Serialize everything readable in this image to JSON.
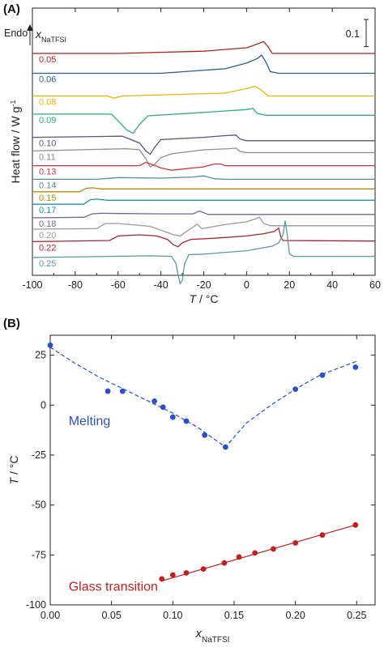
{
  "chart_data": [
    {
      "panel": "(A)",
      "type": "line",
      "xlabel_italic": "T",
      "xlabel_unit": " / °C",
      "ylabel": "Heat flow / W g",
      "ylabel_sup": "-1",
      "xlim": [
        -100,
        60
      ],
      "xticks": [
        -100,
        -80,
        -60,
        -40,
        -20,
        0,
        20,
        40,
        60
      ],
      "endo_label": "Endo",
      "legend_var": "x",
      "legend_sub": "NaTFSI",
      "scale_bar_label": "0.1",
      "scale_bar_value": 0.1,
      "series": [
        {
          "name": "0.05",
          "color": "#b22222",
          "baseline": 0.0,
          "points": [
            [
              -100,
              0.0
            ],
            [
              -60,
              0.0
            ],
            [
              -20,
              0.004
            ],
            [
              0,
              0.01
            ],
            [
              3,
              0.014
            ],
            [
              6,
              0.018
            ],
            [
              8,
              0.021
            ],
            [
              10,
              0.012
            ],
            [
              12,
              0.0
            ],
            [
              60,
              0.0
            ]
          ]
        },
        {
          "name": "0.06",
          "color": "#2e5c8a",
          "baseline": -0.035,
          "points": [
            [
              -100,
              0.0
            ],
            [
              -40,
              0.0
            ],
            [
              -10,
              0.008
            ],
            [
              0,
              0.018
            ],
            [
              5,
              0.026
            ],
            [
              7,
              0.032
            ],
            [
              9,
              0.02
            ],
            [
              11,
              0.003
            ],
            [
              15,
              0.0
            ],
            [
              60,
              0.0
            ]
          ]
        },
        {
          "name": "0.08",
          "color": "#e6b800",
          "baseline": -0.075,
          "points": [
            [
              -100,
              0.0
            ],
            [
              -65,
              0.0
            ],
            [
              -62,
              -0.004
            ],
            [
              -58,
              0.0
            ],
            [
              -10,
              0.005
            ],
            [
              0,
              0.013
            ],
            [
              4,
              0.017
            ],
            [
              7,
              0.01
            ],
            [
              10,
              0.0
            ],
            [
              60,
              0.0
            ]
          ]
        },
        {
          "name": "0.09",
          "color": "#2aae82",
          "baseline": -0.107,
          "points": [
            [
              -100,
              0.0
            ],
            [
              -63,
              0.0
            ],
            [
              -60,
              -0.012
            ],
            [
              -56,
              -0.028
            ],
            [
              -53,
              -0.034
            ],
            [
              -50,
              -0.018
            ],
            [
              -46,
              -0.003
            ],
            [
              -20,
              0.003
            ],
            [
              0,
              0.008
            ],
            [
              3,
              0.01
            ],
            [
              5,
              0.001
            ],
            [
              9,
              -0.002
            ],
            [
              60,
              -0.002
            ]
          ]
        },
        {
          "name": "0.10",
          "color": "#555577",
          "baseline": -0.148,
          "points": [
            [
              -100,
              0.0
            ],
            [
              -58,
              0.002
            ],
            [
              -50,
              -0.01
            ],
            [
              -47,
              -0.024
            ],
            [
              -45,
              -0.03
            ],
            [
              -43,
              -0.018
            ],
            [
              -40,
              -0.004
            ],
            [
              -20,
              0.0
            ],
            [
              -10,
              0.003
            ],
            [
              -5,
              0.004
            ],
            [
              -3,
              -0.003
            ],
            [
              0,
              -0.006
            ],
            [
              60,
              -0.006
            ]
          ]
        },
        {
          "name": "0.11",
          "color": "#8c8c8c",
          "baseline": -0.172,
          "points": [
            [
              -100,
              0.0
            ],
            [
              -56,
              0.004
            ],
            [
              -50,
              0.002
            ],
            [
              -47,
              -0.014
            ],
            [
              -45,
              -0.028
            ],
            [
              -43,
              -0.024
            ],
            [
              -40,
              -0.012
            ],
            [
              -35,
              -0.005
            ],
            [
              -20,
              0.002
            ],
            [
              -8,
              0.004
            ],
            [
              -5,
              0.005
            ],
            [
              -3,
              -0.001
            ],
            [
              0,
              -0.003
            ],
            [
              60,
              -0.003
            ]
          ]
        },
        {
          "name": "0.13",
          "color": "#cc3344",
          "baseline": -0.198,
          "points": [
            [
              -100,
              0.0
            ],
            [
              -50,
              0.0
            ],
            [
              -47,
              0.006
            ],
            [
              -44,
              0.002
            ],
            [
              -40,
              -0.004
            ],
            [
              -35,
              -0.008
            ],
            [
              -30,
              -0.006
            ],
            [
              -20,
              -0.002
            ],
            [
              -15,
              0.003
            ],
            [
              -12,
              0.003
            ],
            [
              -10,
              0.0
            ],
            [
              60,
              0.0
            ]
          ]
        },
        {
          "name": "0.14",
          "color": "#5b8aaa",
          "baseline": -0.222,
          "points": [
            [
              -100,
              0.0
            ],
            [
              -70,
              0.0
            ],
            [
              -60,
              0.003
            ],
            [
              -40,
              0.002
            ],
            [
              -25,
              0.004
            ],
            [
              -20,
              0.006
            ],
            [
              -15,
              0.001
            ],
            [
              -10,
              0.0
            ],
            [
              60,
              0.0
            ]
          ]
        },
        {
          "name": "0.15",
          "color": "#b8860b",
          "baseline": -0.244,
          "points": [
            [
              -100,
              0.0
            ],
            [
              -78,
              0.0
            ],
            [
              -75,
              0.006
            ],
            [
              -72,
              0.007
            ],
            [
              -68,
              0.005
            ],
            [
              60,
              0.005
            ]
          ]
        },
        {
          "name": "0.17",
          "color": "#1a9999",
          "baseline": -0.266,
          "points": [
            [
              -100,
              0.0
            ],
            [
              -76,
              0.0
            ],
            [
              -73,
              0.008
            ],
            [
              -70,
              0.009
            ],
            [
              -65,
              0.007
            ],
            [
              60,
              0.007
            ]
          ]
        },
        {
          "name": "0.18",
          "color": "#6a6a90",
          "baseline": -0.29,
          "points": [
            [
              -100,
              0.0
            ],
            [
              -76,
              0.001
            ],
            [
              -72,
              0.007
            ],
            [
              -68,
              0.008
            ],
            [
              -40,
              0.007
            ],
            [
              -25,
              0.007
            ],
            [
              -22,
              0.012
            ],
            [
              -18,
              0.006
            ],
            [
              60,
              0.006
            ]
          ]
        },
        {
          "name": "0.20",
          "color": "#9a9a9a",
          "baseline": -0.31,
          "points": [
            [
              -100,
              0.0
            ],
            [
              -70,
              0.001
            ],
            [
              -66,
              0.01
            ],
            [
              -60,
              0.01
            ],
            [
              -45,
              0.005
            ],
            [
              -34,
              -0.01
            ],
            [
              -31,
              -0.012
            ],
            [
              -28,
              -0.004
            ],
            [
              -24,
              0.006
            ],
            [
              -23,
              0.009
            ],
            [
              -21,
              0.001
            ],
            [
              -10,
              0.008
            ],
            [
              0,
              0.013
            ],
            [
              4,
              0.018
            ],
            [
              6,
              0.021
            ],
            [
              8,
              0.01
            ],
            [
              11,
              0.006
            ],
            [
              60,
              0.006
            ]
          ]
        },
        {
          "name": "0.22",
          "color": "#aa2233",
          "baseline": -0.332,
          "points": [
            [
              -100,
              0.0
            ],
            [
              -64,
              0.002
            ],
            [
              -60,
              0.01
            ],
            [
              -50,
              0.012
            ],
            [
              -42,
              0.01
            ],
            [
              -37,
              0.004
            ],
            [
              -34,
              -0.006
            ],
            [
              -32,
              -0.009
            ],
            [
              -30,
              -0.002
            ],
            [
              -26,
              0.004
            ],
            [
              -15,
              0.006
            ],
            [
              0,
              0.01
            ],
            [
              8,
              0.014
            ],
            [
              13,
              0.018
            ],
            [
              15,
              0.024
            ],
            [
              16,
              0.008
            ],
            [
              17,
              0.002
            ],
            [
              60,
              0.001
            ]
          ]
        },
        {
          "name": "0.25",
          "color": "#5a9a9a",
          "baseline": -0.36,
          "points": [
            [
              -100,
              0.0
            ],
            [
              -45,
              0.003
            ],
            [
              -35,
              0.002
            ],
            [
              -33,
              -0.01
            ],
            [
              -32,
              -0.03
            ],
            [
              -31,
              -0.046
            ],
            [
              -30,
              -0.04
            ],
            [
              -29,
              -0.012
            ],
            [
              -27,
              0.005
            ],
            [
              -20,
              0.006
            ],
            [
              0,
              0.012
            ],
            [
              12,
              0.02
            ],
            [
              15,
              0.026
            ],
            [
              17,
              0.04
            ],
            [
              18,
              0.065
            ],
            [
              19,
              0.04
            ],
            [
              20,
              0.006
            ],
            [
              22,
              0.002
            ],
            [
              60,
              0.002
            ]
          ]
        }
      ]
    },
    {
      "panel": "(B)",
      "type": "scatter",
      "xlabel_var": "x",
      "xlabel_sub": "NaTFSI",
      "ylabel_italic": "T",
      "ylabel_unit": " / °C",
      "xlim": [
        0.0,
        0.265
      ],
      "ylim": [
        -100,
        35
      ],
      "xticks": [
        0.0,
        0.05,
        0.1,
        0.15,
        0.2,
        0.25
      ],
      "xticklabels": [
        "0.00",
        "0.05",
        "0.10",
        "0.15",
        "0.20",
        "0.25"
      ],
      "yticks": [
        25,
        0,
        -25,
        -50,
        -75,
        -100
      ],
      "yticklabels": [
        "25",
        "0",
        "-25",
        "-50",
        "-75",
        "-100"
      ],
      "series": [
        {
          "name": "Melting",
          "color": "#2a4fc8",
          "x": [
            0.0,
            0.047,
            0.059,
            0.085,
            0.092,
            0.1,
            0.111,
            0.126,
            0.143,
            0.2,
            0.222,
            0.249
          ],
          "y": [
            30,
            7,
            7,
            2,
            -1,
            -6,
            -8,
            -15,
            -21,
            8,
            15,
            19
          ]
        },
        {
          "name": "Glass transition",
          "color": "#c41e1e",
          "x": [
            0.091,
            0.1,
            0.111,
            0.125,
            0.142,
            0.154,
            0.167,
            0.182,
            0.2,
            0.222,
            0.249
          ],
          "y": [
            -87,
            -85,
            -84,
            -82,
            -79,
            -76,
            -74,
            -72,
            -69,
            -65,
            -60
          ]
        }
      ],
      "melting_fit": {
        "color": "#2a4fc8",
        "x": [
          0.0,
          0.02,
          0.04,
          0.06,
          0.08,
          0.1,
          0.12,
          0.143,
          0.16,
          0.18,
          0.2,
          0.22,
          0.25
        ],
        "y": [
          29,
          21,
          14,
          8,
          2,
          -4,
          -11,
          -21,
          -9,
          0,
          8,
          15,
          22
        ]
      },
      "glass_fit": {
        "color": "#c41e1e",
        "x": [
          0.091,
          0.249
        ],
        "y": [
          -88,
          -60
        ]
      },
      "labels": [
        "Melting",
        "Glass transition"
      ]
    }
  ]
}
